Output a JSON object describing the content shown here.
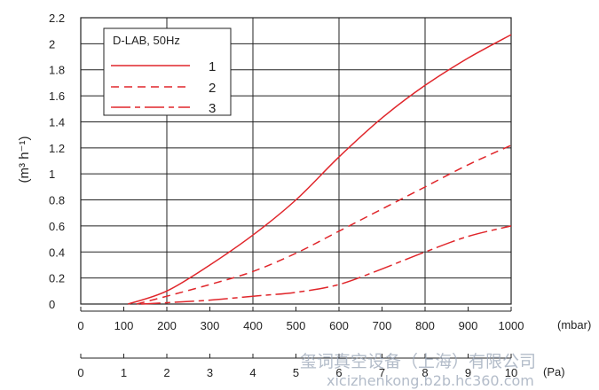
{
  "chart_data": {
    "type": "line",
    "title": "",
    "ylabel": "(m³ h⁻¹)",
    "xlabel": "(mbar)",
    "x2label": "(Pa)",
    "xlim": [
      0,
      1000
    ],
    "ylim": [
      0,
      2.2
    ],
    "x_ticks": [
      0,
      100,
      200,
      300,
      400,
      500,
      600,
      700,
      800,
      900,
      1000
    ],
    "x_tick_labels": [
      "0",
      "100",
      "200",
      "300",
      "400",
      "500",
      "600",
      "700",
      "800",
      "900",
      "1000"
    ],
    "y_ticks": [
      0,
      0.2,
      0.4,
      0.6,
      0.8,
      1,
      1.2,
      1.4,
      1.6,
      1.8,
      2,
      2.2
    ],
    "y_tick_labels": [
      "0",
      "0.2",
      "0.4",
      "0.6",
      "0.8",
      "1",
      "1.2",
      "1.4",
      "1.6",
      "1.8",
      "2",
      "2.2"
    ],
    "x2_tick_labels": [
      "0",
      "1",
      "2",
      "3",
      "4",
      "5",
      "6",
      "7",
      "8",
      "9",
      "10"
    ],
    "grid": true,
    "legend": {
      "title": "D-LAB, 50Hz",
      "placement": "top-left",
      "entries": [
        "1",
        "2",
        "3"
      ]
    },
    "series": [
      {
        "name": "1",
        "style": "solid",
        "x": [
          110,
          200,
          300,
          400,
          500,
          600,
          700,
          800,
          900,
          1000
        ],
        "y": [
          0,
          0.1,
          0.3,
          0.53,
          0.8,
          1.13,
          1.43,
          1.68,
          1.89,
          2.07
        ]
      },
      {
        "name": "2",
        "style": "dashed",
        "x": [
          130,
          200,
          300,
          400,
          500,
          600,
          700,
          800,
          900,
          1000
        ],
        "y": [
          0,
          0.06,
          0.15,
          0.25,
          0.39,
          0.56,
          0.73,
          0.9,
          1.07,
          1.22
        ]
      },
      {
        "name": "3",
        "style": "dash-dot",
        "x": [
          140,
          200,
          300,
          400,
          500,
          600,
          700,
          800,
          900,
          1000
        ],
        "y": [
          0,
          0.01,
          0.03,
          0.06,
          0.09,
          0.15,
          0.27,
          0.4,
          0.52,
          0.6
        ]
      }
    ],
    "line_color": "#e0262b",
    "grid_color": "#222222"
  },
  "watermark": {
    "line1": "玺词真空设备（上海）有限公司",
    "line2": "xicizhenkong.b2b.hc360.com"
  }
}
